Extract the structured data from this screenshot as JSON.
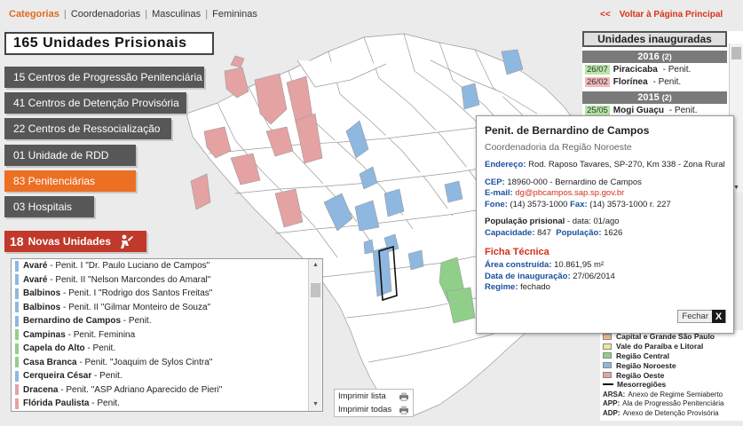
{
  "nav": {
    "tabs": [
      {
        "label": "Categorias",
        "active": true
      },
      {
        "label": "Coordenadorias",
        "active": false
      },
      {
        "label": "Masculinas",
        "active": false
      },
      {
        "label": "Femininas",
        "active": false
      }
    ],
    "separator": "|"
  },
  "summary": {
    "title": "165 Unidades Prisionais"
  },
  "categories": [
    {
      "label": "15 Centros de Progressão Penitenciária"
    },
    {
      "label": "41 Centros de Detenção Provisória"
    },
    {
      "label": "22 Centros de Ressocialização"
    },
    {
      "label": "01 Unidade de RDD"
    },
    {
      "label": "83 Penitenciárias",
      "selected": true
    },
    {
      "label": "03 Hospitais"
    }
  ],
  "novas": {
    "count": "18",
    "label": "Novas Unidades",
    "icon": "worker-icon"
  },
  "unit_list": [
    {
      "city": "Avaré",
      "name": "Penit. I \"Dr. Paulo Luciano de Campos\"",
      "color": "#8fb8e0"
    },
    {
      "city": "Avaré",
      "name": "Penit. II \"Nelson Marcondes do Amaral\"",
      "color": "#8fb8e0"
    },
    {
      "city": "Balbinos",
      "name": "Penit. I \"Rodrigo dos Santos Freitas\"",
      "color": "#8fb8e0"
    },
    {
      "city": "Balbinos",
      "name": "Penit. II \"Gilmar Monteiro de Souza\"",
      "color": "#8fb8e0"
    },
    {
      "city": "Bernardino de Campos",
      "name": "Penit.",
      "color": "#8fb8e0"
    },
    {
      "city": "Campinas",
      "name": "Penit. Feminina",
      "color": "#8fcf8a"
    },
    {
      "city": "Capela do Alto",
      "name": "Penit.",
      "color": "#8fcf8a"
    },
    {
      "city": "Casa Branca",
      "name": "Penit. \"Joaquim de Sylos Cintra\"",
      "color": "#8fcf8a"
    },
    {
      "city": "Cerqueira César",
      "name": "Penit.",
      "color": "#8fb8e0"
    },
    {
      "city": "Dracena",
      "name": "Penit. \"ASP Adriano Aparecido de Pieri\"",
      "color": "#e5a2a2"
    },
    {
      "city": "Flórida Paulista",
      "name": "Penit.",
      "color": "#e5a2a2"
    }
  ],
  "print": {
    "list_label": "Imprimir lista",
    "all_label": "Imprimir todas"
  },
  "voltar": {
    "chevron": "<<",
    "label": "Voltar à Página Principal"
  },
  "inauguradas": {
    "title": "Unidades inauguradas",
    "years": [
      {
        "year": "2016",
        "count": "(2)",
        "entries": [
          {
            "date": "26/07",
            "city": "Piracicaba",
            "name": "Penit.",
            "date_color": "#b8e6a8"
          },
          {
            "date": "26/02",
            "city": "Florínea",
            "name": "Penit.",
            "date_color": "#f2b8b8"
          }
        ]
      },
      {
        "year": "2015",
        "count": "(2)",
        "entries": [
          {
            "date": "25/05",
            "city": "Mogi Guaçu",
            "name": "Penit.",
            "date_color": "#b8e6a8"
          }
        ]
      }
    ]
  },
  "legend": {
    "regions": [
      {
        "label": "Capital e Grande São Paulo",
        "color": "#f0b98a"
      },
      {
        "label": "Vale do Paraíba e Litoral",
        "color": "#f0e5a0"
      },
      {
        "label": "Região Central",
        "color": "#8fcf8a"
      },
      {
        "label": "Região Noroeste",
        "color": "#8fb8e0"
      },
      {
        "label": "Região Oeste",
        "color": "#e5a2a2"
      }
    ],
    "mesoregioes": "Mesorregiões",
    "abbreviations": [
      {
        "code": "ARSA:",
        "text": "Anexo de Regime Semiaberto"
      },
      {
        "code": "APP:",
        "text": "Ala de Progressão Penitenciária"
      },
      {
        "code": "ADP:",
        "text": "Anexo de Detenção Provisória"
      }
    ]
  },
  "popup": {
    "title": "Penit. de Bernardino de Campos",
    "subtitle": "Coordenadoria da Região Noroeste",
    "endereco_label": "Endereço:",
    "endereco": "Rod. Raposo Tavares, SP-270, Km 338 - Zona Rural",
    "cep_label": "CEP:",
    "cep": "18960-000 - Bernardino de Campos",
    "email_label": "E-mail:",
    "email": "dg@pbcampos.sap.sp.gov.br",
    "fone_label": "Fone:",
    "fone": "(14) 3573-1000",
    "fax_label": "Fax:",
    "fax": "(14) 3573-1000 r. 227",
    "populacao_label": "População prisional",
    "populacao_data": "- data: 01/ago",
    "capacidade_label": "Capacidade:",
    "capacidade": "847",
    "populacao2_label": "População:",
    "populacao2": "1626",
    "ficha": "Ficha Técnica",
    "area_label": "Área construída:",
    "area": "10.861,95 m²",
    "inauguracao_label": "Data de inauguração:",
    "inauguracao": "27/06/2014",
    "regime_label": "Regime:",
    "regime": "fechado",
    "close_label": "Fechar",
    "close_x": "X"
  },
  "colors": {
    "accent_orange": "#ec6f24",
    "dark_button": "#575757",
    "novas_red": "#c0392b",
    "region_oeste": "#e5a2a2",
    "region_noroeste": "#8fb8e0",
    "region_central": "#8fcf8a"
  }
}
